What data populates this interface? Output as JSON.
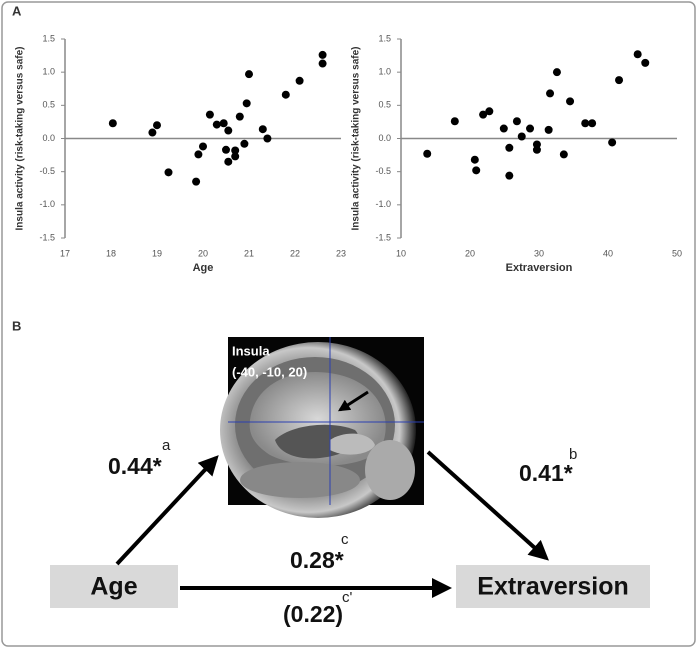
{
  "panel_labels": [
    "A",
    "B"
  ],
  "chart_data": [
    {
      "type": "scatter",
      "xlabel": "Age",
      "ylabel": "Insula activity (risk-taking versus safe)",
      "x": [
        18.04,
        18.9,
        19.0,
        19.25,
        19.85,
        19.9,
        20.0,
        20.15,
        20.3,
        20.45,
        20.5,
        20.55,
        20.55,
        20.7,
        20.7,
        20.8,
        20.9,
        20.95,
        21.0,
        21.3,
        21.4,
        21.8,
        22.1,
        22.6,
        22.6
      ],
      "y": [
        0.23,
        0.09,
        0.2,
        -0.51,
        -0.65,
        -0.24,
        -0.12,
        0.36,
        0.21,
        0.23,
        -0.17,
        0.12,
        -0.35,
        -0.18,
        -0.27,
        0.33,
        -0.08,
        0.53,
        0.97,
        0.14,
        0.0,
        0.66,
        0.87,
        1.26,
        1.13
      ],
      "color": "#000000",
      "xlim": [
        17,
        23
      ],
      "xticks": [
        17,
        18,
        19,
        20,
        21,
        22,
        23
      ],
      "ylim": [
        -1.5,
        1.5
      ],
      "yticks": [
        {
          "value": -1.5,
          "label": "-1.5"
        },
        {
          "value": -1,
          "label": "-1.0"
        },
        {
          "value": -0.5,
          "label": "-0.5"
        },
        {
          "value": 0,
          "label": "0.0"
        },
        {
          "value": 0.5,
          "label": "0.5"
        },
        {
          "value": 1,
          "label": "1.0"
        },
        {
          "value": 1.5,
          "label": "1.5"
        }
      ]
    },
    {
      "type": "scatter",
      "xlabel": "Extraversion",
      "ylabel": "Insula activity (risk-taking versus safe)",
      "x": [
        13.8,
        17.8,
        20.7,
        20.9,
        21.9,
        22.8,
        24.9,
        25.7,
        25.7,
        26.8,
        27.5,
        28.7,
        29.7,
        29.7,
        31.4,
        31.6,
        32.6,
        33.6,
        34.5,
        36.7,
        37.7,
        40.6,
        41.6,
        44.3,
        45.4
      ],
      "y": [
        -0.23,
        0.26,
        -0.32,
        -0.48,
        0.36,
        0.41,
        0.15,
        -0.14,
        -0.56,
        0.26,
        0.03,
        0.15,
        -0.09,
        -0.17,
        0.13,
        0.68,
        1.0,
        -0.24,
        0.56,
        0.23,
        0.23,
        -0.06,
        0.88,
        1.27,
        1.14
      ],
      "color": "#000000",
      "xlim": [
        10,
        50
      ],
      "xticks": [
        10,
        20,
        30,
        40,
        50
      ],
      "ylim": [
        -1.5,
        1.5
      ],
      "yticks": [
        {
          "value": -1.5,
          "label": "-1.5"
        },
        {
          "value": -1,
          "label": "-1.0"
        },
        {
          "value": -0.5,
          "label": "-0.5"
        },
        {
          "value": 0,
          "label": "0.0"
        },
        {
          "value": 0.5,
          "label": "0.5"
        },
        {
          "value": 1,
          "label": "1.0"
        },
        {
          "value": 1.5,
          "label": "1.5"
        }
      ]
    }
  ],
  "diagram": {
    "nodes": [
      "Age",
      "Extraversion"
    ],
    "mediator": {
      "label": "Insula",
      "coords": "(-40, -10, 20)"
    },
    "paths": [
      {
        "coef": "0.44*",
        "sup": "a"
      },
      {
        "coef": "0.41*",
        "sup": "b"
      },
      {
        "coef": "0.28*",
        "sup": "c"
      },
      {
        "coef": "(0.22)",
        "sup": "c'"
      }
    ]
  }
}
